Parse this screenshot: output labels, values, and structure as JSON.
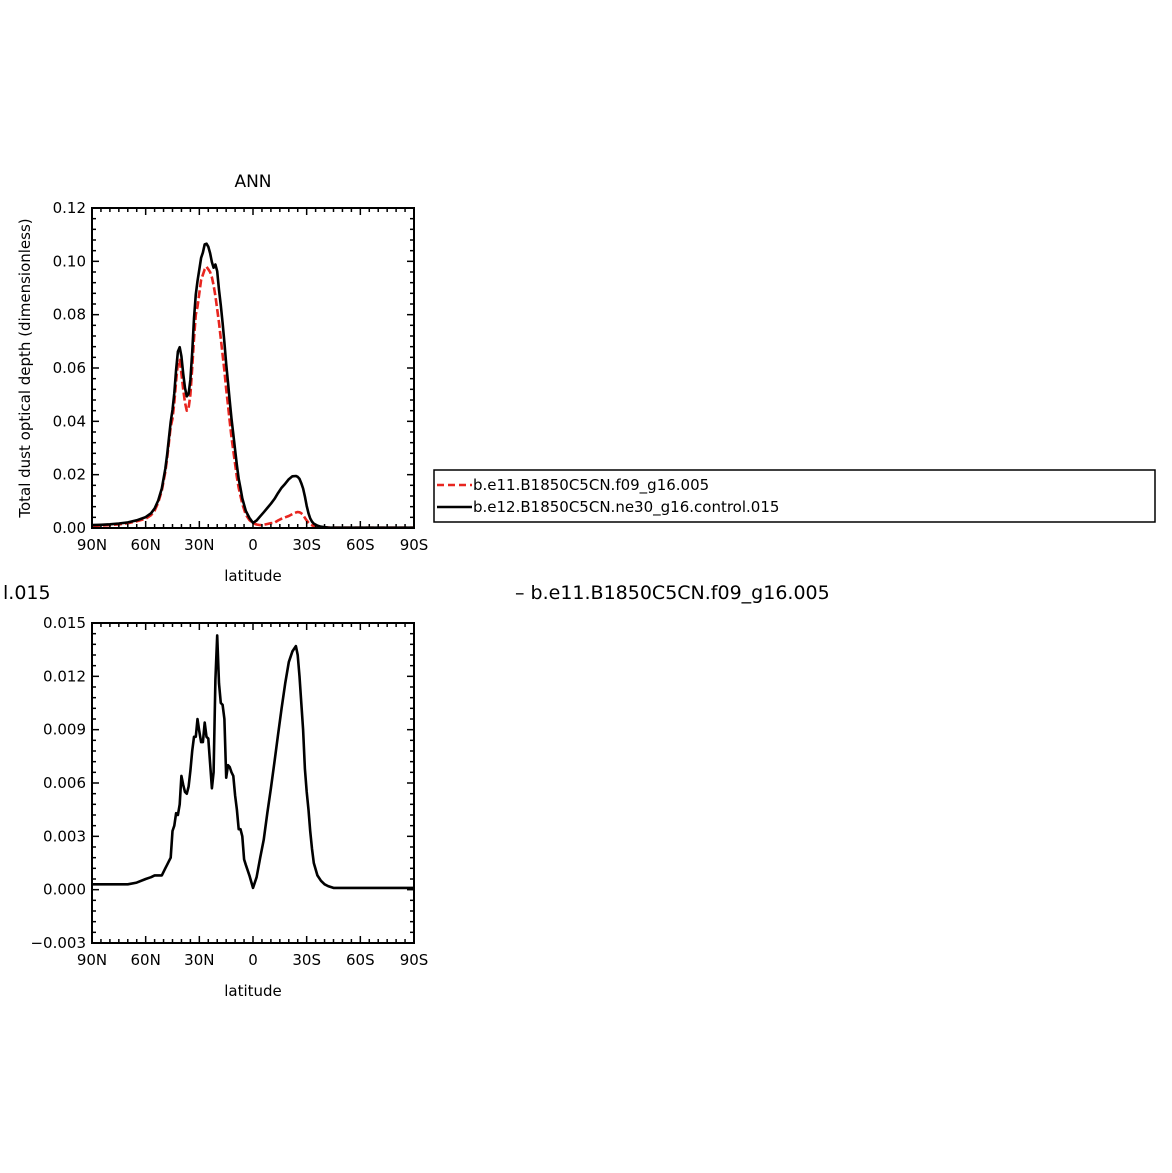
{
  "page": {
    "cutoff_left_text": "l.015",
    "cutoff_right_text": "– b.e11.B1850C5CN.f09_g16.005"
  },
  "legend": {
    "entries": [
      {
        "label": "b.e11.B1850C5CN.f09_g16.005",
        "color": "#e8251f",
        "dash": true
      },
      {
        "label": "b.e12.B1850C5CN.ne30_g16.control.015",
        "color": "#000000",
        "dash": false
      }
    ]
  },
  "chart_data": [
    {
      "type": "line",
      "title": "ANN",
      "xlabel": "latitude",
      "ylabel": "Total dust optical depth (dimensionless)",
      "x_direction": "north-to-south",
      "xlim": [
        90,
        -90
      ],
      "ylim": [
        0.0,
        0.12
      ],
      "x_ticks": [
        90,
        60,
        30,
        0,
        -30,
        -60,
        -90
      ],
      "x_tick_labels": [
        "90N",
        "60N",
        "30N",
        "0",
        "30S",
        "60S",
        "90S"
      ],
      "y_ticks": [
        0.0,
        0.02,
        0.04,
        0.06,
        0.08,
        0.1,
        0.12
      ],
      "y_tick_labels": [
        "0.00",
        "0.02",
        "0.04",
        "0.06",
        "0.08",
        "0.10",
        "0.12"
      ],
      "grid": false,
      "series": [
        {
          "name": "b.e11.B1850C5CN.f09_g16.005",
          "color": "#e8251f",
          "dash": true,
          "x": [
            90,
            85,
            80,
            75,
            70,
            65,
            60,
            57,
            55,
            53,
            51,
            49,
            48,
            47,
            46,
            45,
            44,
            43,
            42,
            41,
            40,
            39,
            38,
            37,
            36,
            35,
            34,
            33,
            32,
            31,
            30,
            29,
            28,
            27,
            26,
            25,
            24,
            23,
            22,
            21,
            20,
            19,
            18,
            17,
            16,
            15,
            14,
            13,
            12,
            11,
            10,
            9,
            8,
            7,
            6,
            5,
            4,
            2,
            0,
            -2,
            -4,
            -6,
            -8,
            -10,
            -12,
            -14,
            -16,
            -18,
            -20,
            -22,
            -24,
            -25,
            -26,
            -27,
            -28,
            -29,
            -30,
            -31,
            -32,
            -33,
            -34,
            -36,
            -38,
            -40,
            -42,
            -45,
            -50,
            -55,
            -60,
            -65,
            -70,
            -80,
            -90
          ],
          "y": [
            0.0008,
            0.0009,
            0.0011,
            0.0014,
            0.0018,
            0.0025,
            0.0035,
            0.0048,
            0.0065,
            0.0095,
            0.014,
            0.021,
            0.026,
            0.032,
            0.038,
            0.041,
            0.047,
            0.055,
            0.062,
            0.063,
            0.058,
            0.052,
            0.047,
            0.044,
            0.045,
            0.05,
            0.06,
            0.071,
            0.08,
            0.083,
            0.088,
            0.093,
            0.095,
            0.097,
            0.098,
            0.097,
            0.096,
            0.094,
            0.091,
            0.087,
            0.082,
            0.077,
            0.071,
            0.065,
            0.059,
            0.052,
            0.046,
            0.04,
            0.034,
            0.029,
            0.024,
            0.019,
            0.015,
            0.012,
            0.009,
            0.007,
            0.005,
            0.003,
            0.0018,
            0.0013,
            0.0011,
            0.0012,
            0.0015,
            0.0018,
            0.002,
            0.0028,
            0.0035,
            0.004,
            0.0045,
            0.0052,
            0.0058,
            0.006,
            0.0059,
            0.0055,
            0.005,
            0.0038,
            0.0028,
            0.002,
            0.0014,
            0.001,
            0.0007,
            0.0004,
            0.0003,
            0.0002,
            0.0002,
            0.0001,
            0.0001,
            0.0001,
            0.0001,
            0.0001,
            0.0001,
            0.0001,
            0.0001
          ]
        },
        {
          "name": "b.e12.B1850C5CN.ne30_g16.control.015",
          "color": "#000000",
          "dash": false,
          "x": [
            90,
            85,
            80,
            75,
            70,
            65,
            60,
            57,
            55,
            53,
            51,
            49,
            48,
            47,
            46,
            45,
            44,
            43,
            42,
            41,
            40,
            39,
            38,
            37,
            36,
            35,
            34,
            33,
            32,
            31,
            30,
            29,
            28,
            27,
            26,
            25,
            24,
            23,
            22,
            21,
            20,
            19,
            18,
            17,
            16,
            15,
            14,
            13,
            12,
            11,
            10,
            9,
            8,
            7,
            6,
            5,
            4,
            2,
            0,
            -2,
            -4,
            -6,
            -8,
            -10,
            -12,
            -14,
            -16,
            -18,
            -20,
            -22,
            -24,
            -25,
            -26,
            -27,
            -28,
            -29,
            -30,
            -31,
            -32,
            -33,
            -34,
            -36,
            -38,
            -40,
            -42,
            -45,
            -50,
            -55,
            -60,
            -65,
            -70,
            -80,
            -90
          ],
          "y": [
            0.0011,
            0.0012,
            0.0014,
            0.0017,
            0.0021,
            0.0029,
            0.0041,
            0.0055,
            0.0073,
            0.0103,
            0.0148,
            0.0222,
            0.0274,
            0.0336,
            0.0398,
            0.0443,
            0.0506,
            0.0593,
            0.0662,
            0.0678,
            0.0644,
            0.0579,
            0.0525,
            0.0494,
            0.0503,
            0.0557,
            0.0658,
            0.0786,
            0.0876,
            0.0926,
            0.0969,
            0.1013,
            0.1033,
            0.1064,
            0.1066,
            0.1055,
            0.1031,
            0.0997,
            0.0976,
            0.0988,
            0.0963,
            0.0893,
            0.0835,
            0.0769,
            0.0696,
            0.0615,
            0.0546,
            0.0478,
            0.041,
            0.0352,
            0.0293,
            0.0235,
            0.0184,
            0.0149,
            0.0111,
            0.0087,
            0.0064,
            0.0038,
            0.0019,
            0.0028,
            0.0044,
            0.0059,
            0.0075,
            0.0091,
            0.0109,
            0.0131,
            0.0151,
            0.0166,
            0.0183,
            0.0194,
            0.0195,
            0.0192,
            0.0184,
            0.0168,
            0.0148,
            0.0118,
            0.0083,
            0.0055,
            0.0036,
            0.0024,
            0.0016,
            0.0009,
            0.0005,
            0.0003,
            0.0002,
            0.0001,
            0.0001,
            0.0001,
            0.0001,
            0.0001,
            0.0001,
            0.0001,
            0.0001
          ]
        }
      ]
    },
    {
      "type": "line",
      "title": "",
      "xlabel": "latitude",
      "ylabel": "",
      "x_direction": "north-to-south",
      "xlim": [
        90,
        -90
      ],
      "ylim": [
        -0.003,
        0.015
      ],
      "x_ticks": [
        90,
        60,
        30,
        0,
        -30,
        -60,
        -90
      ],
      "x_tick_labels": [
        "90N",
        "60N",
        "30N",
        "0",
        "30S",
        "60S",
        "90S"
      ],
      "y_ticks": [
        -0.003,
        0.0,
        0.003,
        0.006,
        0.009,
        0.012,
        0.015
      ],
      "y_tick_labels": [
        "−0.003",
        "0.000",
        "0.003",
        "0.006",
        "0.009",
        "0.012",
        "0.015"
      ],
      "grid": false,
      "series": [
        {
          "name": "",
          "color": "#000000",
          "dash": false,
          "x": [
            90,
            85,
            80,
            75,
            70,
            65,
            60,
            57,
            55,
            53,
            51,
            49,
            48,
            47,
            46,
            45,
            44,
            43,
            42,
            41,
            40,
            39,
            38,
            37,
            36,
            35,
            34,
            33,
            32,
            31,
            30,
            29,
            28,
            27,
            26,
            25,
            24,
            23,
            22,
            21,
            20,
            19,
            18,
            17,
            16,
            15,
            14,
            13,
            12,
            11,
            10,
            9,
            8,
            7,
            6,
            5,
            4,
            2,
            0,
            -2,
            -4,
            -6,
            -8,
            -10,
            -12,
            -14,
            -16,
            -18,
            -20,
            -22,
            -24,
            -25,
            -26,
            -27,
            -28,
            -29,
            -30,
            -31,
            -32,
            -33,
            -34,
            -36,
            -38,
            -40,
            -42,
            -45,
            -50,
            -55,
            -60,
            -65,
            -70,
            -80,
            -90
          ],
          "y": [
            0.0003,
            0.0003,
            0.0003,
            0.0003,
            0.0003,
            0.0004,
            0.0006,
            0.0007,
            0.0008,
            0.0008,
            0.0008,
            0.0012,
            0.0014,
            0.0016,
            0.0018,
            0.0033,
            0.0036,
            0.0043,
            0.0042,
            0.0048,
            0.0064,
            0.0059,
            0.0055,
            0.0054,
            0.0058,
            0.0067,
            0.0078,
            0.0086,
            0.0086,
            0.0096,
            0.0089,
            0.0083,
            0.0083,
            0.0094,
            0.0086,
            0.0085,
            0.0071,
            0.0057,
            0.0066,
            0.0118,
            0.0143,
            0.0116,
            0.0105,
            0.0104,
            0.0096,
            0.0063,
            0.007,
            0.0069,
            0.0066,
            0.0064,
            0.0053,
            0.0045,
            0.0034,
            0.0034,
            0.003,
            0.0017,
            0.0014,
            0.0008,
            0.0001,
            0.0007,
            0.0018,
            0.0028,
            0.0043,
            0.0057,
            0.0072,
            0.0087,
            0.0102,
            0.0116,
            0.0128,
            0.0134,
            0.0137,
            0.0132,
            0.012,
            0.0105,
            0.009,
            0.0068,
            0.0055,
            0.0045,
            0.0033,
            0.0023,
            0.0015,
            0.0008,
            0.0005,
            0.0003,
            0.0002,
            0.0001,
            0.0001,
            0.0001,
            0.0001,
            0.0001,
            0.0001,
            0.0001,
            0.0001
          ]
        }
      ]
    }
  ]
}
